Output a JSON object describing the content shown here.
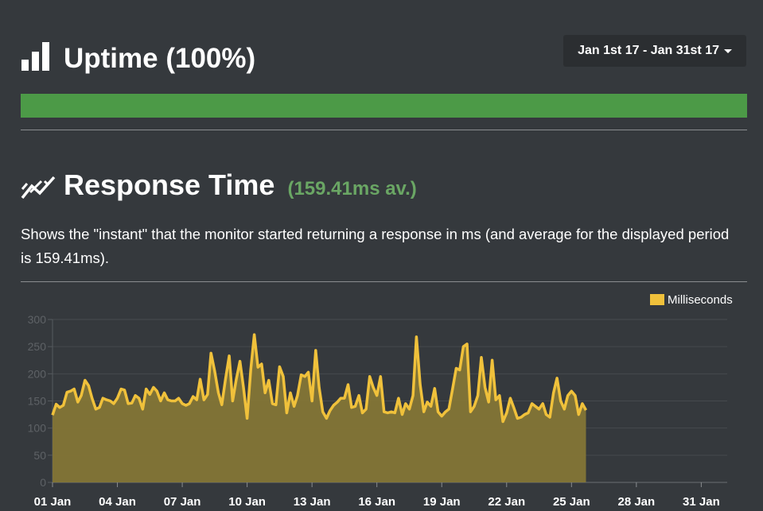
{
  "uptime": {
    "title": "Uptime (100%)",
    "percent": 100,
    "bar_color": "#4c9a47",
    "icon": "bar-chart-icon"
  },
  "date_range": {
    "label": "Jan 1st 17 - Jan 31st 17",
    "icon": "caret-down-icon"
  },
  "response_time": {
    "title": "Response Time",
    "average": "(159.41ms av.)",
    "average_color": "#6aa664",
    "icon": "trend-line-icon",
    "description": "Shows the \"instant\" that the monitor started returning a response in ms (and average for the displayed period is 159.41ms)."
  },
  "chart_data": {
    "type": "area",
    "title": "",
    "xlabel": "",
    "ylabel": "",
    "ylim": [
      0,
      300
    ],
    "yticks": [
      0,
      50,
      100,
      150,
      200,
      250,
      300
    ],
    "xlim": [
      1,
      32.2
    ],
    "xticks": [
      {
        "day": 1,
        "label": "01 Jan"
      },
      {
        "day": 4,
        "label": "04 Jan"
      },
      {
        "day": 7,
        "label": "07 Jan"
      },
      {
        "day": 10,
        "label": "10 Jan"
      },
      {
        "day": 13,
        "label": "13 Jan"
      },
      {
        "day": 16,
        "label": "16 Jan"
      },
      {
        "day": 19,
        "label": "19 Jan"
      },
      {
        "day": 22,
        "label": "22 Jan"
      },
      {
        "day": 25,
        "label": "25 Jan"
      },
      {
        "day": 28,
        "label": "28 Jan"
      },
      {
        "day": 31,
        "label": "31 Jan"
      }
    ],
    "grid": true,
    "legend": "top-right",
    "series": [
      {
        "name": "Milliseconds",
        "color": "#f0c13b",
        "fill": "#847536",
        "points": [
          [
            1.0,
            124
          ],
          [
            1.17,
            144
          ],
          [
            1.33,
            138
          ],
          [
            1.5,
            142
          ],
          [
            1.67,
            166
          ],
          [
            1.83,
            168
          ],
          [
            2.0,
            172
          ],
          [
            2.17,
            148
          ],
          [
            2.33,
            160
          ],
          [
            2.5,
            188
          ],
          [
            2.67,
            178
          ],
          [
            2.83,
            155
          ],
          [
            3.0,
            135
          ],
          [
            3.17,
            138
          ],
          [
            3.33,
            155
          ],
          [
            3.5,
            152
          ],
          [
            3.67,
            150
          ],
          [
            3.83,
            145
          ],
          [
            4.0,
            155
          ],
          [
            4.17,
            172
          ],
          [
            4.33,
            170
          ],
          [
            4.5,
            145
          ],
          [
            4.67,
            146
          ],
          [
            4.83,
            160
          ],
          [
            5.0,
            155
          ],
          [
            5.17,
            135
          ],
          [
            5.33,
            172
          ],
          [
            5.5,
            162
          ],
          [
            5.67,
            175
          ],
          [
            5.83,
            168
          ],
          [
            6.0,
            150
          ],
          [
            6.17,
            165
          ],
          [
            6.33,
            152
          ],
          [
            6.5,
            150
          ],
          [
            6.67,
            150
          ],
          [
            6.83,
            155
          ],
          [
            7.0,
            145
          ],
          [
            7.17,
            142
          ],
          [
            7.33,
            145
          ],
          [
            7.5,
            158
          ],
          [
            7.67,
            152
          ],
          [
            7.83,
            190
          ],
          [
            8.0,
            152
          ],
          [
            8.17,
            162
          ],
          [
            8.33,
            238
          ],
          [
            8.5,
            205
          ],
          [
            8.67,
            165
          ],
          [
            8.83,
            143
          ],
          [
            9.0,
            190
          ],
          [
            9.17,
            233
          ],
          [
            9.33,
            150
          ],
          [
            9.5,
            190
          ],
          [
            9.67,
            223
          ],
          [
            9.83,
            175
          ],
          [
            10.0,
            118
          ],
          [
            10.17,
            208
          ],
          [
            10.33,
            272
          ],
          [
            10.5,
            212
          ],
          [
            10.67,
            218
          ],
          [
            10.83,
            165
          ],
          [
            11.0,
            188
          ],
          [
            11.17,
            145
          ],
          [
            11.33,
            143
          ],
          [
            11.5,
            213
          ],
          [
            11.67,
            195
          ],
          [
            11.83,
            128
          ],
          [
            12.0,
            165
          ],
          [
            12.17,
            140
          ],
          [
            12.33,
            160
          ],
          [
            12.5,
            198
          ],
          [
            12.67,
            195
          ],
          [
            12.83,
            203
          ],
          [
            13.0,
            150
          ],
          [
            13.17,
            243
          ],
          [
            13.33,
            175
          ],
          [
            13.5,
            130
          ],
          [
            13.67,
            118
          ],
          [
            13.83,
            132
          ],
          [
            14.0,
            142
          ],
          [
            14.17,
            148
          ],
          [
            14.33,
            155
          ],
          [
            14.5,
            155
          ],
          [
            14.67,
            180
          ],
          [
            14.83,
            138
          ],
          [
            15.0,
            140
          ],
          [
            15.17,
            160
          ],
          [
            15.33,
            128
          ],
          [
            15.5,
            135
          ],
          [
            15.67,
            195
          ],
          [
            15.83,
            175
          ],
          [
            16.0,
            160
          ],
          [
            16.17,
            195
          ],
          [
            16.33,
            130
          ],
          [
            16.5,
            128
          ],
          [
            16.67,
            130
          ],
          [
            16.83,
            128
          ],
          [
            17.0,
            155
          ],
          [
            17.17,
            125
          ],
          [
            17.33,
            145
          ],
          [
            17.5,
            135
          ],
          [
            17.67,
            160
          ],
          [
            17.83,
            268
          ],
          [
            18.0,
            180
          ],
          [
            18.17,
            130
          ],
          [
            18.33,
            148
          ],
          [
            18.5,
            140
          ],
          [
            18.67,
            173
          ],
          [
            18.83,
            130
          ],
          [
            19.0,
            122
          ],
          [
            19.17,
            130
          ],
          [
            19.33,
            135
          ],
          [
            19.5,
            172
          ],
          [
            19.67,
            210
          ],
          [
            19.83,
            207
          ],
          [
            20.0,
            250
          ],
          [
            20.17,
            255
          ],
          [
            20.33,
            130
          ],
          [
            20.5,
            140
          ],
          [
            20.67,
            160
          ],
          [
            20.83,
            230
          ],
          [
            21.0,
            175
          ],
          [
            21.17,
            148
          ],
          [
            21.33,
            225
          ],
          [
            21.5,
            152
          ],
          [
            21.67,
            160
          ],
          [
            21.83,
            112
          ],
          [
            22.0,
            128
          ],
          [
            22.17,
            155
          ],
          [
            22.33,
            138
          ],
          [
            22.5,
            118
          ],
          [
            22.67,
            120
          ],
          [
            22.83,
            125
          ],
          [
            23.0,
            128
          ],
          [
            23.17,
            145
          ],
          [
            23.33,
            140
          ],
          [
            23.5,
            135
          ],
          [
            23.67,
            145
          ],
          [
            23.83,
            125
          ],
          [
            24.0,
            120
          ],
          [
            24.17,
            165
          ],
          [
            24.33,
            192
          ],
          [
            24.5,
            150
          ],
          [
            24.67,
            135
          ],
          [
            24.83,
            160
          ],
          [
            25.0,
            168
          ],
          [
            25.17,
            160
          ],
          [
            25.33,
            125
          ],
          [
            25.5,
            145
          ],
          [
            25.67,
            133
          ]
        ]
      }
    ]
  }
}
